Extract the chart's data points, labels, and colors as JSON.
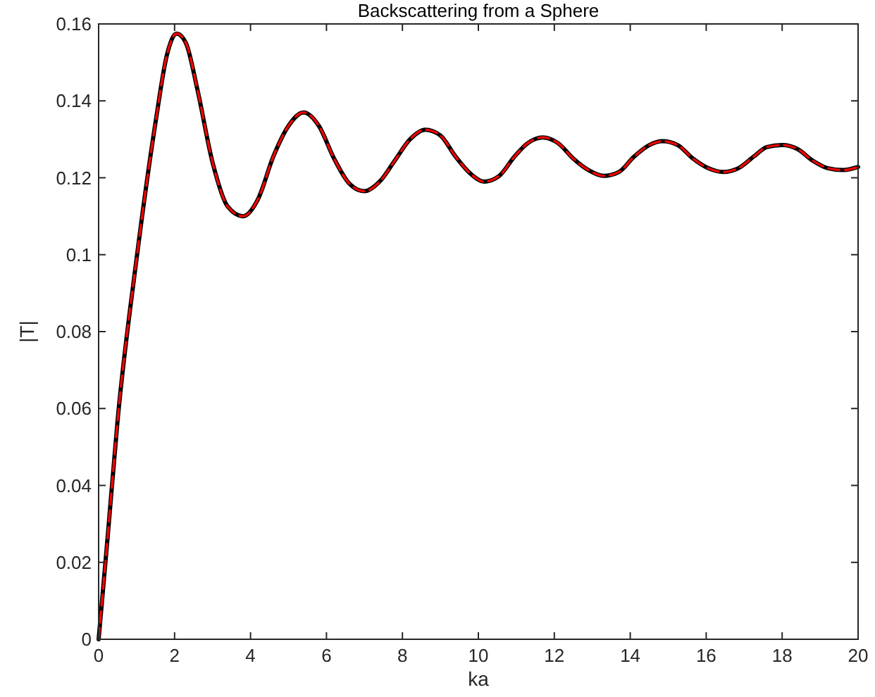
{
  "chart_data": {
    "type": "line",
    "title": "Backscattering from a Sphere",
    "xlabel": "ka",
    "ylabel": "|T|",
    "x": [
      0,
      0.25,
      0.5,
      1,
      1.5,
      1.8,
      2.05,
      2.3,
      2.6,
      3,
      3.4,
      3.8,
      4.2,
      4.6,
      5,
      5.4,
      5.8,
      6.2,
      6.6,
      7,
      7.4,
      7.8,
      8.2,
      8.6,
      9,
      9.4,
      9.8,
      10.15,
      10.55,
      10.95,
      11.3,
      11.7,
      12.1,
      12.5,
      12.9,
      13.3,
      13.7,
      14.1,
      14.5,
      14.85,
      15.25,
      15.65,
      16.05,
      16.45,
      16.85,
      17.25,
      17.6,
      18,
      18.4,
      18.8,
      19.2,
      19.6,
      20
    ],
    "series": [
      {
        "color": "#000000",
        "line_style": "solid",
        "values": [
          0,
          0.028,
          0.057,
          0.099,
          0.1345,
          0.152,
          0.1575,
          0.155,
          0.143,
          0.124,
          0.1125,
          0.11,
          0.1145,
          0.1255,
          0.1335,
          0.137,
          0.1335,
          0.125,
          0.1185,
          0.1165,
          0.119,
          0.1245,
          0.13,
          0.1325,
          0.131,
          0.1255,
          0.121,
          0.119,
          0.1205,
          0.1255,
          0.129,
          0.1305,
          0.129,
          0.125,
          0.122,
          0.1205,
          0.1215,
          0.1255,
          0.1285,
          0.1295,
          0.1285,
          0.125,
          0.1225,
          0.1215,
          0.1225,
          0.1255,
          0.128,
          0.1285,
          0.1275,
          0.1245,
          0.1225,
          0.122,
          0.1228
        ]
      },
      {
        "color": "#ff0000",
        "line_style": "dashed",
        "values": [
          0,
          0.028,
          0.057,
          0.099,
          0.1345,
          0.152,
          0.1575,
          0.155,
          0.143,
          0.124,
          0.1125,
          0.11,
          0.1145,
          0.1255,
          0.1335,
          0.137,
          0.1335,
          0.125,
          0.1185,
          0.1165,
          0.119,
          0.1245,
          0.13,
          0.1325,
          0.131,
          0.1255,
          0.121,
          0.119,
          0.1205,
          0.1255,
          0.129,
          0.1305,
          0.129,
          0.125,
          0.122,
          0.1205,
          0.1215,
          0.1255,
          0.1285,
          0.1295,
          0.1285,
          0.125,
          0.1225,
          0.1215,
          0.1225,
          0.1255,
          0.128,
          0.1285,
          0.1275,
          0.1245,
          0.1225,
          0.122,
          0.1228
        ]
      }
    ],
    "xlim": [
      0,
      20
    ],
    "xticks": [
      0,
      2,
      4,
      6,
      8,
      10,
      12,
      14,
      16,
      18,
      20
    ],
    "ylim": [
      0,
      0.16
    ],
    "yticks": [
      0,
      0.02,
      0.04,
      0.06,
      0.08,
      0.1,
      0.12,
      0.14,
      0.16
    ],
    "grid": false
  }
}
